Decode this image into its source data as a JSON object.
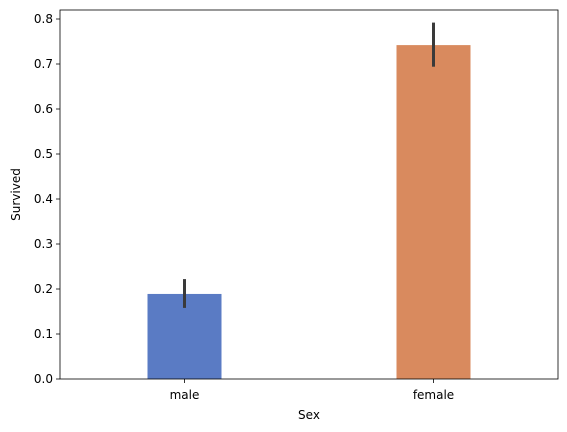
{
  "chart_data": {
    "type": "bar",
    "categories": [
      "male",
      "female"
    ],
    "values": [
      0.189,
      0.742
    ],
    "error_bars": [
      [
        0.158,
        0.222
      ],
      [
        0.694,
        0.792
      ]
    ],
    "bar_colors": [
      "#5a7bc4",
      "#d98a5e"
    ],
    "error_color": "#3a3a3a",
    "xlabel": "Sex",
    "ylabel": "Survived",
    "ylim": [
      0,
      0.82
    ],
    "yticks": [
      "0.0",
      "0.1",
      "0.2",
      "0.3",
      "0.4",
      "0.5",
      "0.6",
      "0.7",
      "0.8"
    ],
    "grid": false,
    "legend": "none"
  }
}
